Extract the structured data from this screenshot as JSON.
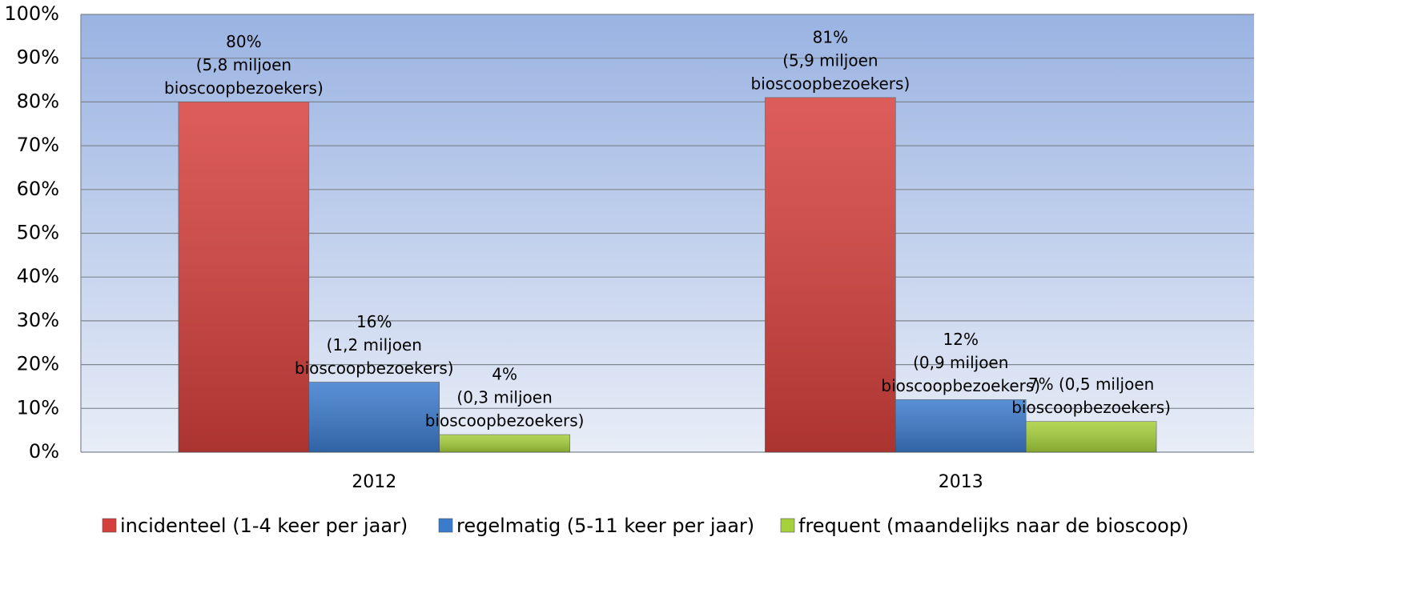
{
  "chart_data": {
    "type": "bar",
    "categories": [
      "2012",
      "2013"
    ],
    "series": [
      {
        "name": "incidenteel (1-4 keer per jaar)",
        "color": "#d6403c",
        "values": [
          80,
          81
        ],
        "value_labels": [
          [
            "80%",
            "(5,8 miljoen",
            "bioscoopbezoekers)"
          ],
          [
            "81%",
            "(5,9 miljoen",
            "bioscoopbezoekers)"
          ]
        ]
      },
      {
        "name": "regelmatig (5-11 keer per jaar)",
        "color": "#3b7bcc",
        "values": [
          16,
          12
        ],
        "value_labels": [
          [
            "16%",
            "(1,2 miljoen",
            "bioscoopbezoekers)"
          ],
          [
            "12%",
            "(0,9 miljoen",
            "bioscoopbezoekers)"
          ]
        ]
      },
      {
        "name": "frequent (maandelijks naar de bioscoop)",
        "color": "#a6d03c",
        "values": [
          4,
          7
        ],
        "value_labels": [
          [
            "4%",
            "(0,3 miljoen",
            "bioscoopbezoekers)"
          ],
          [
            "7% (0,5 miljoen",
            "bioscoopbezoekers)"
          ]
        ]
      }
    ],
    "ylim": [
      0,
      100
    ],
    "yticks": [
      {
        "value": 0,
        "label": "0%"
      },
      {
        "value": 10,
        "label": "10%"
      },
      {
        "value": 20,
        "label": "20%"
      },
      {
        "value": 30,
        "label": "30%"
      },
      {
        "value": 40,
        "label": "40%"
      },
      {
        "value": 50,
        "label": "50%"
      },
      {
        "value": 60,
        "label": "60%"
      },
      {
        "value": 70,
        "label": "70%"
      },
      {
        "value": 80,
        "label": "80%"
      },
      {
        "value": 90,
        "label": "90%"
      },
      {
        "value": 100,
        "label": "100%"
      }
    ],
    "grid": true,
    "legend": "bottom"
  }
}
